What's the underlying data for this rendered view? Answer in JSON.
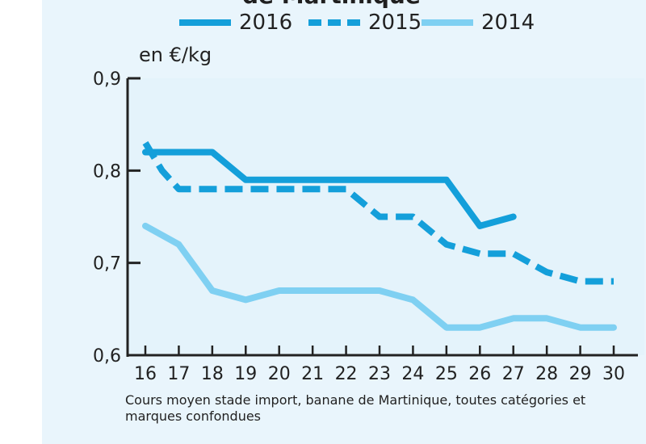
{
  "chart_data": {
    "type": "line",
    "title_fragment": "de Martinique",
    "ylabel": "en €/kg",
    "caption": "Cours moyen stade import, banane de Martinique, toutes catégories et marques confondues",
    "x": [
      16,
      17,
      18,
      19,
      20,
      21,
      22,
      23,
      24,
      25,
      26,
      27,
      28,
      29,
      30
    ],
    "xlim": [
      16,
      30
    ],
    "ylim": [
      0.6,
      0.9
    ],
    "y_ticks": [
      "0,6",
      "0,7",
      "0,8",
      "0,9"
    ],
    "x_ticks": [
      "16",
      "17",
      "18",
      "19",
      "20",
      "21",
      "22",
      "23",
      "24",
      "25",
      "26",
      "27",
      "28",
      "29",
      "30"
    ],
    "grid": false,
    "legend_position": "top",
    "series": [
      {
        "name": "2016",
        "style": "solid",
        "color": "#149fda",
        "x": [
          16,
          17,
          18,
          19,
          20,
          21,
          22,
          23,
          24,
          25,
          26,
          27
        ],
        "values": [
          0.82,
          0.82,
          0.82,
          0.79,
          0.79,
          0.79,
          0.79,
          0.79,
          0.79,
          0.79,
          0.74,
          0.75
        ]
      },
      {
        "name": "2015",
        "style": "dashed",
        "color": "#149fda",
        "x": [
          16,
          16.5,
          17,
          18,
          19,
          20,
          21,
          22,
          23,
          24,
          25,
          26,
          27,
          28,
          29,
          30
        ],
        "values": [
          0.83,
          0.8,
          0.78,
          0.78,
          0.78,
          0.78,
          0.78,
          0.78,
          0.75,
          0.75,
          0.72,
          0.71,
          0.71,
          0.69,
          0.68,
          0.68
        ]
      },
      {
        "name": "2014",
        "style": "solid",
        "color": "#7fd0f2",
        "x": [
          16,
          17,
          18,
          19,
          20,
          21,
          22,
          23,
          24,
          25,
          26,
          27,
          28,
          29,
          30
        ],
        "values": [
          0.74,
          0.72,
          0.67,
          0.66,
          0.67,
          0.67,
          0.67,
          0.67,
          0.66,
          0.63,
          0.63,
          0.64,
          0.64,
          0.63,
          0.63
        ]
      }
    ]
  }
}
